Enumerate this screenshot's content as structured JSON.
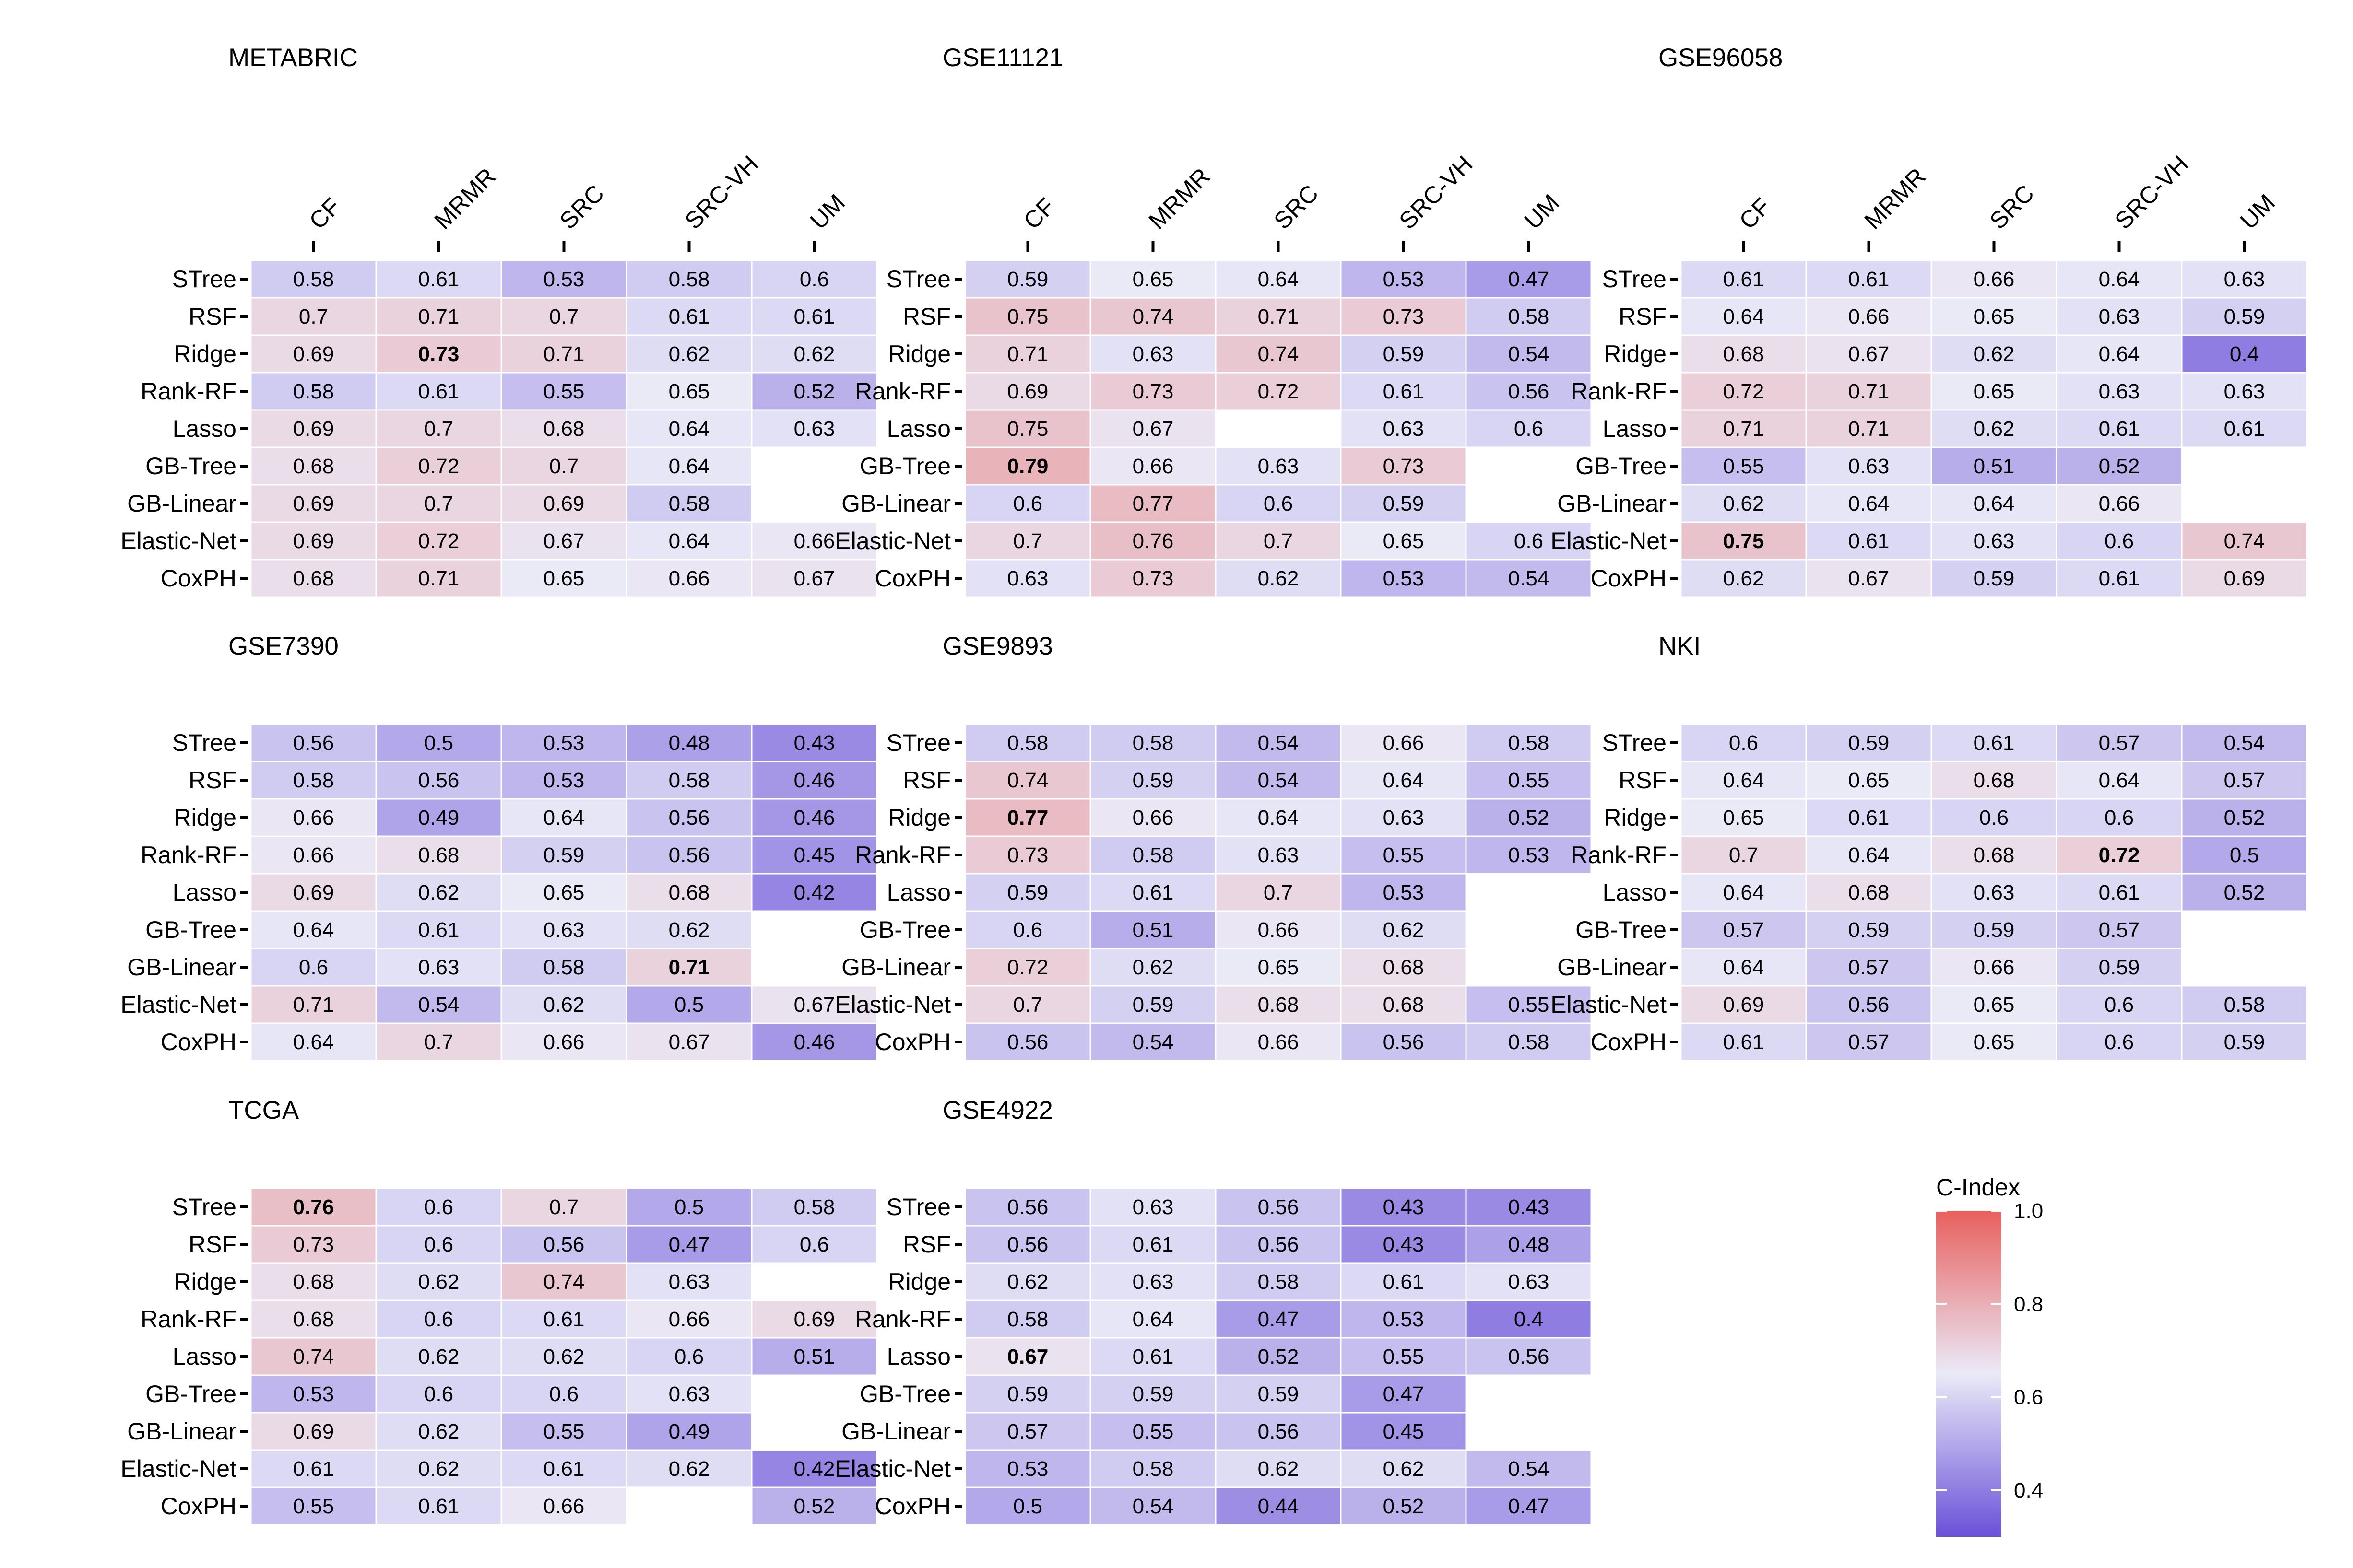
{
  "chart_data": {
    "type": "heatmap",
    "legend": {
      "title": "C-Index",
      "ticks": [
        "1.0",
        "0.8",
        "0.6",
        "0.4"
      ],
      "tick_values": [
        1.0,
        0.8,
        0.6,
        0.4
      ],
      "range": [
        0.3,
        1.0
      ],
      "colors": {
        "low": "#6a51d8",
        "mid": "#eaeaf7",
        "high": "#e8605e"
      },
      "placement": "bottom-right"
    },
    "rows": [
      "STree",
      "RSF",
      "Ridge",
      "Rank-RF",
      "Lasso",
      "GB-Tree",
      "GB-Linear",
      "Elastic-Net",
      "CoxPH"
    ],
    "columns": [
      "CF",
      "MRMR",
      "SRC",
      "SRC-VH",
      "UM"
    ],
    "panels": [
      {
        "title": "METABRIC",
        "show_col_labels": true,
        "values": [
          [
            "0.58",
            "0.61",
            "0.53",
            "0.58",
            "0.6"
          ],
          [
            "0.7",
            "0.71",
            "0.7",
            "0.61",
            "0.61"
          ],
          [
            "0.69",
            "0.73",
            "0.71",
            "0.62",
            "0.62"
          ],
          [
            "0.58",
            "0.61",
            "0.55",
            "0.65",
            "0.52"
          ],
          [
            "0.69",
            "0.7",
            "0.68",
            "0.64",
            "0.63"
          ],
          [
            "0.68",
            "0.72",
            "0.7",
            "0.64",
            null
          ],
          [
            "0.69",
            "0.7",
            "0.69",
            "0.58",
            null
          ],
          [
            "0.69",
            "0.72",
            "0.67",
            "0.64",
            "0.66"
          ],
          [
            "0.68",
            "0.71",
            "0.65",
            "0.66",
            "0.67"
          ]
        ],
        "bold": [
          [
            2,
            1
          ]
        ]
      },
      {
        "title": "GSE11121",
        "show_col_labels": true,
        "values": [
          [
            "0.59",
            "0.65",
            "0.64",
            "0.53",
            "0.47"
          ],
          [
            "0.75",
            "0.74",
            "0.71",
            "0.73",
            "0.58"
          ],
          [
            "0.71",
            "0.63",
            "0.74",
            "0.59",
            "0.54"
          ],
          [
            "0.69",
            "0.73",
            "0.72",
            "0.61",
            "0.56"
          ],
          [
            "0.75",
            "0.67",
            null,
            "0.63",
            "0.6"
          ],
          [
            "0.79",
            "0.66",
            "0.63",
            "0.73",
            null
          ],
          [
            "0.6",
            "0.77",
            "0.6",
            "0.59",
            null
          ],
          [
            "0.7",
            "0.76",
            "0.7",
            "0.65",
            "0.6"
          ],
          [
            "0.63",
            "0.73",
            "0.62",
            "0.53",
            "0.54"
          ]
        ],
        "bold": [
          [
            5,
            0
          ]
        ]
      },
      {
        "title": "GSE96058",
        "show_col_labels": true,
        "values": [
          [
            "0.61",
            "0.61",
            "0.66",
            "0.64",
            "0.63"
          ],
          [
            "0.64",
            "0.66",
            "0.65",
            "0.63",
            "0.59"
          ],
          [
            "0.68",
            "0.67",
            "0.62",
            "0.64",
            "0.4"
          ],
          [
            "0.72",
            "0.71",
            "0.65",
            "0.63",
            "0.63"
          ],
          [
            "0.71",
            "0.71",
            "0.62",
            "0.61",
            "0.61"
          ],
          [
            "0.55",
            "0.63",
            "0.51",
            "0.52",
            null
          ],
          [
            "0.62",
            "0.64",
            "0.64",
            "0.66",
            null
          ],
          [
            "0.75",
            "0.61",
            "0.63",
            "0.6",
            "0.74"
          ],
          [
            "0.62",
            "0.67",
            "0.59",
            "0.61",
            "0.69"
          ]
        ],
        "bold": [
          [
            7,
            0
          ]
        ]
      },
      {
        "title": "GSE7390",
        "show_col_labels": false,
        "values": [
          [
            "0.56",
            "0.5",
            "0.53",
            "0.48",
            "0.43"
          ],
          [
            "0.58",
            "0.56",
            "0.53",
            "0.58",
            "0.46"
          ],
          [
            "0.66",
            "0.49",
            "0.64",
            "0.56",
            "0.46"
          ],
          [
            "0.66",
            "0.68",
            "0.59",
            "0.56",
            "0.45"
          ],
          [
            "0.69",
            "0.62",
            "0.65",
            "0.68",
            "0.42"
          ],
          [
            "0.64",
            "0.61",
            "0.63",
            "0.62",
            null
          ],
          [
            "0.6",
            "0.63",
            "0.58",
            "0.71",
            null
          ],
          [
            "0.71",
            "0.54",
            "0.62",
            "0.5",
            "0.67"
          ],
          [
            "0.64",
            "0.7",
            "0.66",
            "0.67",
            "0.46"
          ]
        ],
        "bold": [
          [
            6,
            3
          ]
        ]
      },
      {
        "title": "GSE9893",
        "show_col_labels": false,
        "values": [
          [
            "0.58",
            "0.58",
            "0.54",
            "0.66",
            "0.58"
          ],
          [
            "0.74",
            "0.59",
            "0.54",
            "0.64",
            "0.55"
          ],
          [
            "0.77",
            "0.66",
            "0.64",
            "0.63",
            "0.52"
          ],
          [
            "0.73",
            "0.58",
            "0.63",
            "0.55",
            "0.53"
          ],
          [
            "0.59",
            "0.61",
            "0.7",
            "0.53",
            null
          ],
          [
            "0.6",
            "0.51",
            "0.66",
            "0.62",
            null
          ],
          [
            "0.72",
            "0.62",
            "0.65",
            "0.68",
            null
          ],
          [
            "0.7",
            "0.59",
            "0.68",
            "0.68",
            "0.55"
          ],
          [
            "0.56",
            "0.54",
            "0.66",
            "0.56",
            "0.58"
          ]
        ],
        "bold": [
          [
            2,
            0
          ]
        ]
      },
      {
        "title": "NKI",
        "show_col_labels": false,
        "values": [
          [
            "0.6",
            "0.59",
            "0.61",
            "0.57",
            "0.54"
          ],
          [
            "0.64",
            "0.65",
            "0.68",
            "0.64",
            "0.57"
          ],
          [
            "0.65",
            "0.61",
            "0.6",
            "0.6",
            "0.52"
          ],
          [
            "0.7",
            "0.64",
            "0.68",
            "0.72",
            "0.5"
          ],
          [
            "0.64",
            "0.68",
            "0.63",
            "0.61",
            "0.52"
          ],
          [
            "0.57",
            "0.59",
            "0.59",
            "0.57",
            null
          ],
          [
            "0.64",
            "0.57",
            "0.66",
            "0.59",
            null
          ],
          [
            "0.69",
            "0.56",
            "0.65",
            "0.6",
            "0.58"
          ],
          [
            "0.61",
            "0.57",
            "0.65",
            "0.6",
            "0.59"
          ]
        ],
        "bold": [
          [
            3,
            3
          ]
        ]
      },
      {
        "title": "TCGA",
        "show_col_labels": false,
        "values": [
          [
            "0.76",
            "0.6",
            "0.7",
            "0.5",
            "0.58"
          ],
          [
            "0.73",
            "0.6",
            "0.56",
            "0.47",
            "0.6"
          ],
          [
            "0.68",
            "0.62",
            "0.74",
            "0.63",
            null
          ],
          [
            "0.68",
            "0.6",
            "0.61",
            "0.66",
            "0.69"
          ],
          [
            "0.74",
            "0.62",
            "0.62",
            "0.6",
            "0.51"
          ],
          [
            "0.53",
            "0.6",
            "0.6",
            "0.63",
            null
          ],
          [
            "0.69",
            "0.62",
            "0.55",
            "0.49",
            null
          ],
          [
            "0.61",
            "0.62",
            "0.61",
            "0.62",
            "0.42"
          ],
          [
            "0.55",
            "0.61",
            "0.66",
            null,
            "0.52"
          ]
        ],
        "bold": [
          [
            0,
            0
          ]
        ]
      },
      {
        "title": "GSE4922",
        "show_col_labels": false,
        "values": [
          [
            "0.56",
            "0.63",
            "0.56",
            "0.43",
            "0.43"
          ],
          [
            "0.56",
            "0.61",
            "0.56",
            "0.43",
            "0.48"
          ],
          [
            "0.62",
            "0.63",
            "0.58",
            "0.61",
            "0.63"
          ],
          [
            "0.58",
            "0.64",
            "0.47",
            "0.53",
            "0.4"
          ],
          [
            "0.67",
            "0.61",
            "0.52",
            "0.55",
            "0.56"
          ],
          [
            "0.59",
            "0.59",
            "0.59",
            "0.47",
            null
          ],
          [
            "0.57",
            "0.55",
            "0.56",
            "0.45",
            null
          ],
          [
            "0.53",
            "0.58",
            "0.62",
            "0.62",
            "0.54"
          ],
          [
            "0.5",
            "0.54",
            "0.44",
            "0.52",
            "0.47"
          ]
        ],
        "bold": [
          [
            4,
            0
          ]
        ]
      }
    ]
  }
}
